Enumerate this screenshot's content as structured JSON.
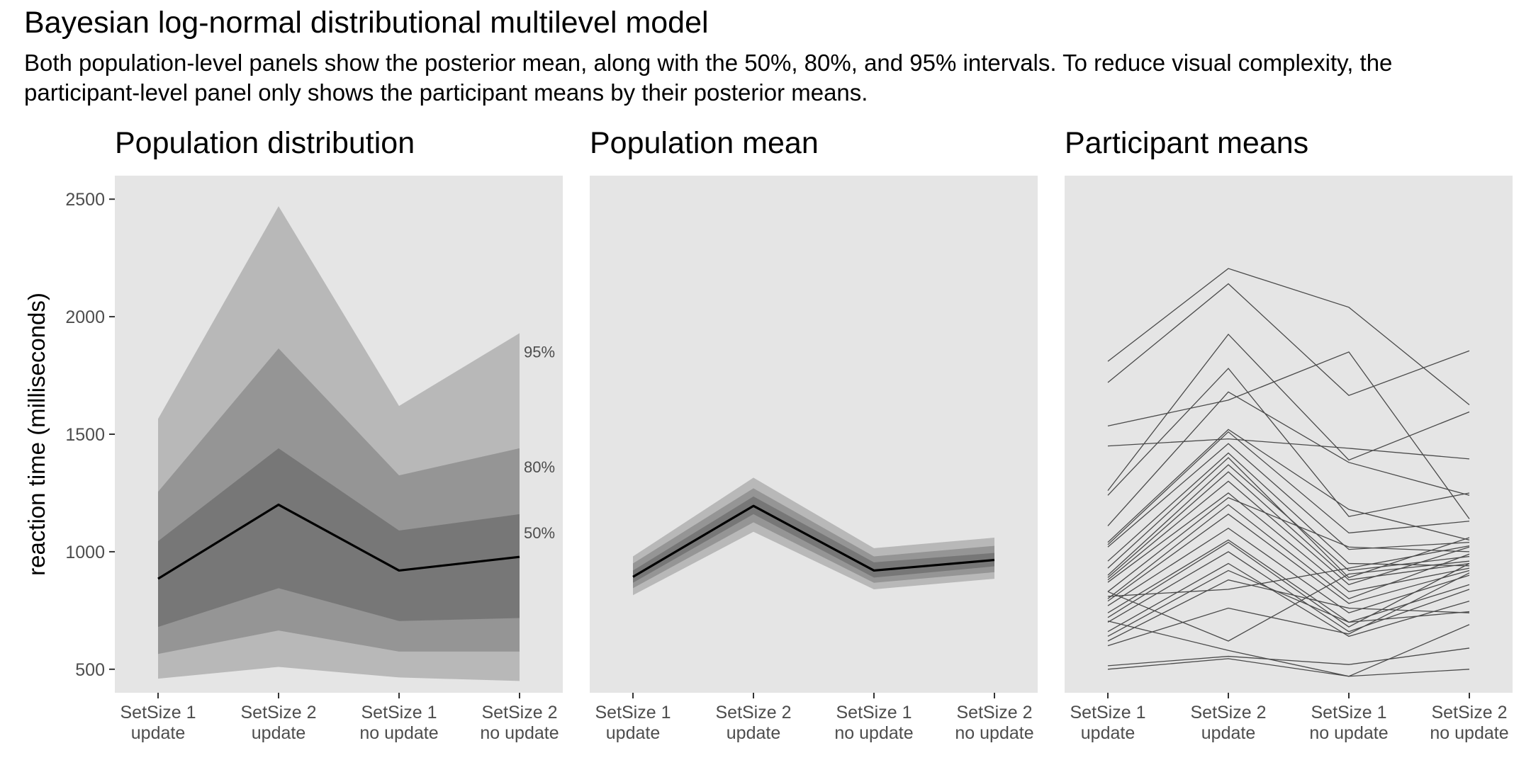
{
  "header": {
    "title": "Bayesian log-normal distributional multilevel model",
    "subtitle": "Both population-level panels show the posterior mean, along with the 50%, 80%, and 95% intervals. To reduce visual complexity, the participant-level panel only shows the participant means by their posterior means."
  },
  "colors": {
    "panel_bg": "#e5e5e5",
    "band_95": "#b8b8b8",
    "band_80": "#959595",
    "band_50": "#777777",
    "line": "#000000",
    "participant_line": "#4a4a4a"
  },
  "chart_data": [
    {
      "panel": "distribution",
      "type": "area",
      "title": "Population distribution",
      "ylabel": "reaction time (milliseconds)",
      "categories": [
        "SetSize 1\nupdate",
        "SetSize 2\nupdate",
        "SetSize 1\nno update",
        "SetSize 2\nno update"
      ],
      "ylim": [
        400,
        2600
      ],
      "yticks": [
        500,
        1000,
        1500,
        2000,
        2500
      ],
      "mean": [
        885,
        1200,
        920,
        978
      ],
      "bands": [
        {
          "name": "95%",
          "lower": [
            460,
            510,
            465,
            450
          ],
          "upper": [
            1565,
            2470,
            1620,
            1930
          ]
        },
        {
          "name": "80%",
          "lower": [
            565,
            665,
            575,
            575
          ],
          "upper": [
            1255,
            1865,
            1325,
            1440
          ]
        },
        {
          "name": "50%",
          "lower": [
            680,
            845,
            705,
            718
          ],
          "upper": [
            1045,
            1440,
            1090,
            1160
          ]
        }
      ]
    },
    {
      "panel": "mean",
      "type": "area",
      "title": "Population mean",
      "categories": [
        "SetSize 1\nupdate",
        "SetSize 2\nupdate",
        "SetSize 1\nno update",
        "SetSize 2\nno update"
      ],
      "ylim": [
        400,
        2600
      ],
      "mean": [
        893,
        1195,
        920,
        965
      ],
      "bands": [
        {
          "name": "95%",
          "lower": [
            815,
            1085,
            840,
            885
          ],
          "upper": [
            980,
            1315,
            1015,
            1060
          ]
        },
        {
          "name": "80%",
          "lower": [
            845,
            1125,
            868,
            913
          ],
          "upper": [
            950,
            1270,
            980,
            1025
          ]
        },
        {
          "name": "50%",
          "lower": [
            868,
            1160,
            890,
            938
          ],
          "upper": [
            920,
            1235,
            955,
            995
          ]
        }
      ]
    },
    {
      "panel": "participants",
      "type": "line",
      "title": "Participant means",
      "categories": [
        "SetSize 1\nupdate",
        "SetSize 2\nupdate",
        "SetSize 1\nno update",
        "SetSize 2\nno update"
      ],
      "ylim": [
        400,
        2600
      ],
      "series": [
        {
          "values": [
            1810,
            2205,
            2040,
            1625
          ]
        },
        {
          "values": [
            1720,
            2140,
            1665,
            1855
          ]
        },
        {
          "values": [
            1535,
            1645,
            1850,
            1140
          ]
        },
        {
          "values": [
            1450,
            1480,
            1440,
            1395
          ]
        },
        {
          "values": [
            1260,
            1925,
            1390,
            1595
          ]
        },
        {
          "values": [
            1240,
            1780,
            1150,
            1250
          ]
        },
        {
          "values": [
            1110,
            1680,
            1380,
            1240
          ]
        },
        {
          "values": [
            1040,
            1520,
            1180,
            1050
          ]
        },
        {
          "values": [
            1030,
            1510,
            1080,
            1130
          ]
        },
        {
          "values": [
            1020,
            1460,
            1010,
            1040
          ]
        },
        {
          "values": [
            960,
            1420,
            950,
            940
          ]
        },
        {
          "values": [
            930,
            1400,
            890,
            1060
          ]
        },
        {
          "values": [
            900,
            1370,
            920,
            980
          ]
        },
        {
          "values": [
            890,
            1340,
            880,
            950
          ]
        },
        {
          "values": [
            880,
            1300,
            860,
            1020
          ]
        },
        {
          "values": [
            870,
            1250,
            830,
            930
          ]
        },
        {
          "values": [
            830,
            1230,
            1020,
            1000
          ]
        },
        {
          "values": [
            800,
            1200,
            800,
            990
          ]
        },
        {
          "values": [
            790,
            1160,
            780,
            920
          ]
        },
        {
          "values": [
            770,
            1100,
            740,
            900
          ]
        },
        {
          "values": [
            740,
            1050,
            700,
            860
          ]
        },
        {
          "values": [
            720,
            1040,
            680,
            950
          ]
        },
        {
          "values": [
            700,
            1000,
            660,
            840
          ]
        },
        {
          "values": [
            660,
            950,
            640,
            790
          ]
        },
        {
          "values": [
            640,
            920,
            700,
            745
          ]
        },
        {
          "values": [
            620,
            880,
            760,
            740
          ]
        },
        {
          "values": [
            600,
            760,
            650,
            910
          ]
        },
        {
          "values": [
            810,
            840,
            930,
            1025
          ]
        },
        {
          "values": [
            830,
            620,
            905,
            960
          ]
        },
        {
          "values": [
            705,
            580,
            470,
            690
          ]
        },
        {
          "values": [
            515,
            555,
            520,
            590
          ]
        },
        {
          "values": [
            500,
            545,
            470,
            500
          ]
        }
      ]
    }
  ]
}
